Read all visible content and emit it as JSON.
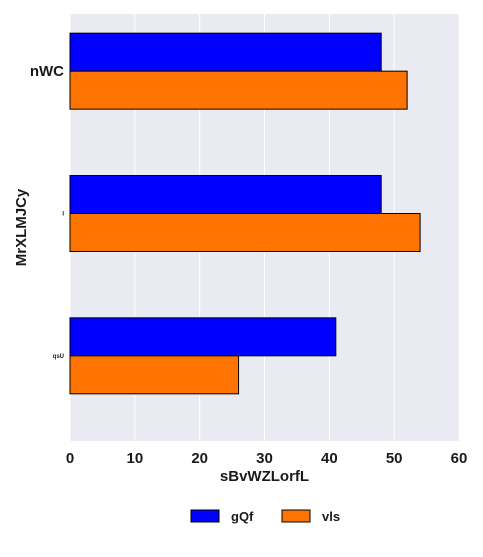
{
  "chart_data": {
    "type": "bar",
    "orientation": "horizontal",
    "categories": [
      "nWC",
      "I",
      "qsU"
    ],
    "series": [
      {
        "name": "gQf",
        "values": [
          48,
          48,
          41
        ],
        "color": "#0000ff"
      },
      {
        "name": "vls",
        "values": [
          52,
          54,
          26
        ],
        "color": "#ff7300"
      }
    ],
    "xlabel": "sBvWZLorfL",
    "ylabel": "MrXLMJCy",
    "xlim": [
      0,
      60
    ],
    "xticks": [
      0,
      10,
      20,
      30,
      40,
      50,
      60
    ],
    "grid": true,
    "legend_position": "bottom-center",
    "background_color": "#eaeaf2",
    "grid_color": "#ffffff"
  }
}
